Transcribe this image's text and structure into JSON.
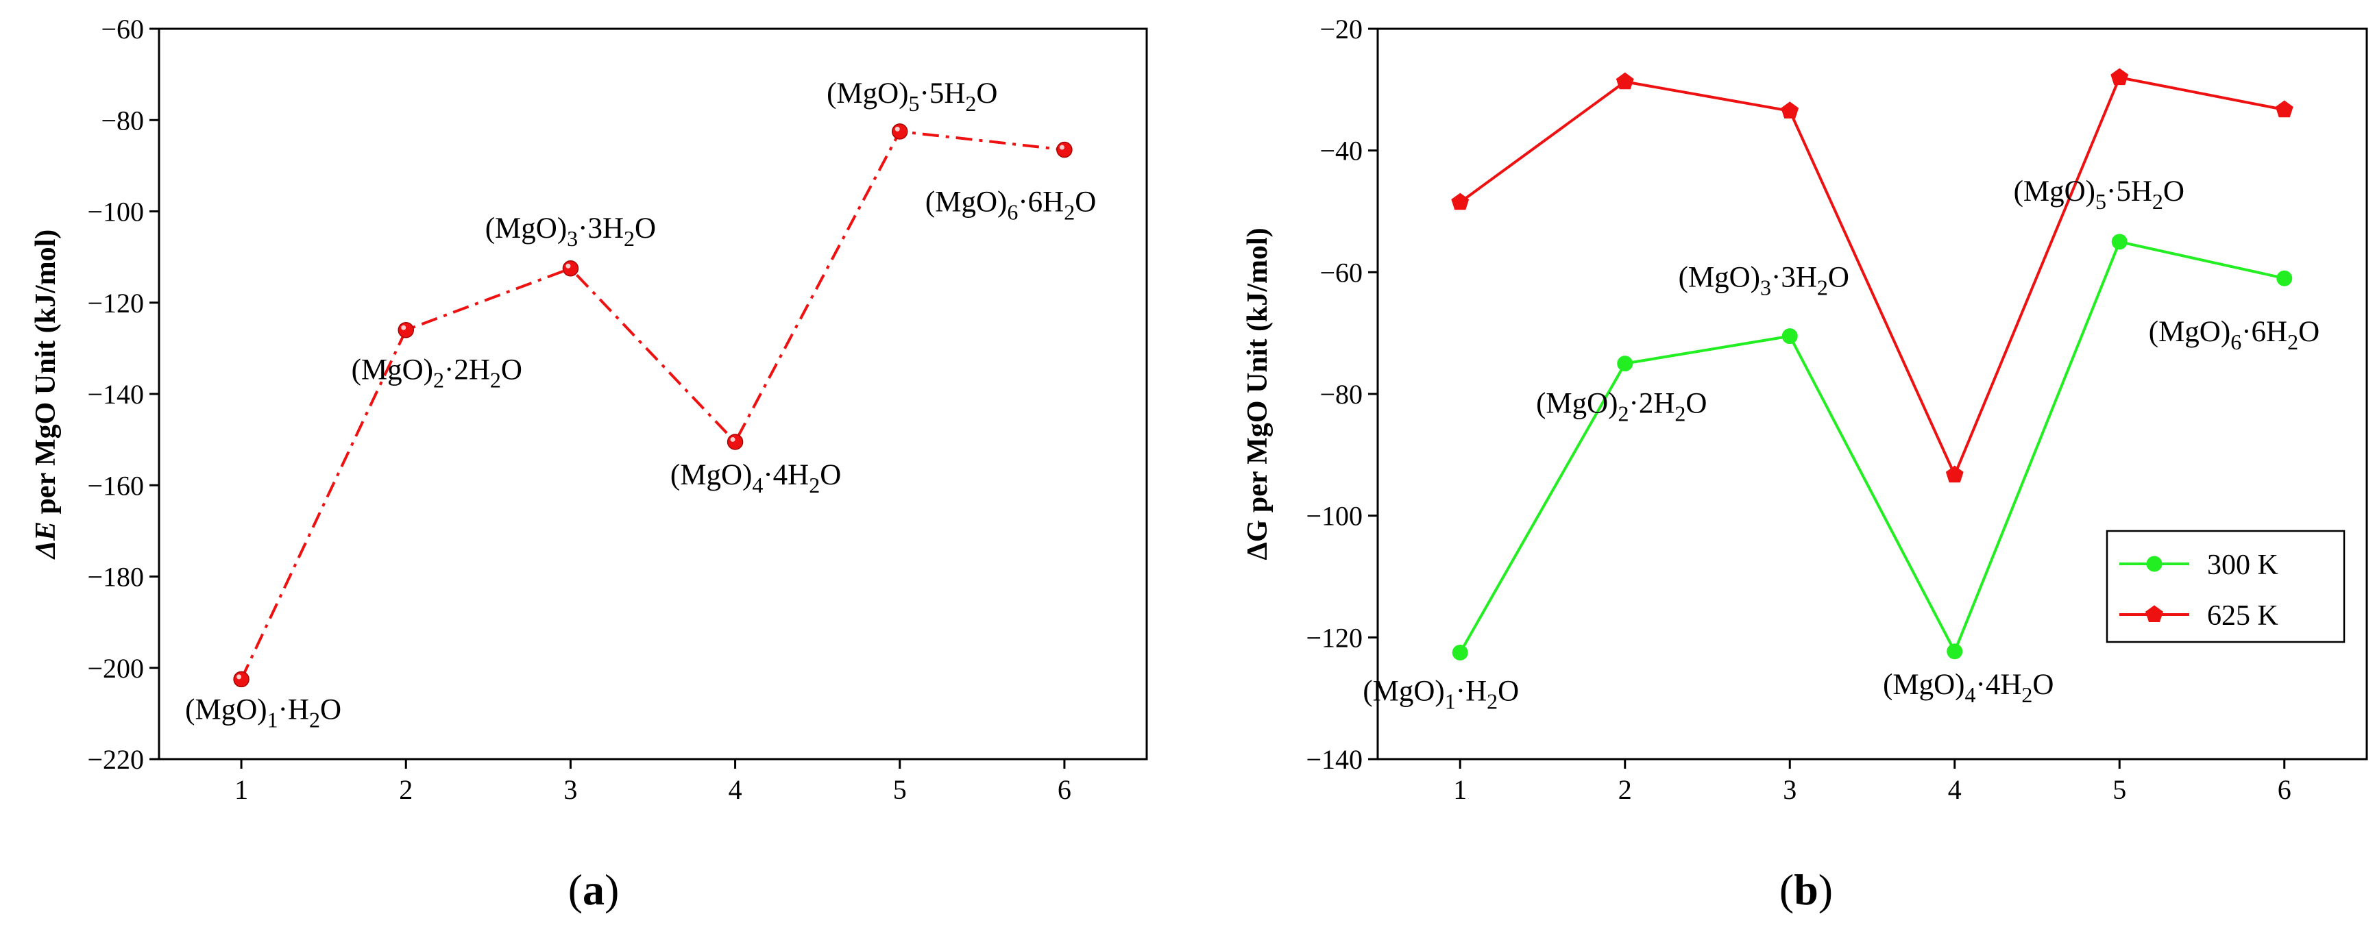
{
  "chart_data": [
    {
      "panel": "a",
      "panel_label": "(a)",
      "type": "line",
      "x": [
        1,
        2,
        3,
        4,
        5,
        6
      ],
      "xlim": [
        0.5,
        6.5
      ],
      "ylim": [
        -220,
        -60
      ],
      "yticks": [
        -220,
        -200,
        -180,
        -160,
        -140,
        -120,
        -100,
        -80,
        -60
      ],
      "xticks": [
        1,
        2,
        3,
        4,
        5,
        6
      ],
      "ylabel_prefix": "ΔE",
      "ylabel_rest": " per MgO Unit (kJ/mol)",
      "xlabel": "",
      "series": [
        {
          "name": "ΔE",
          "color": "#ee1111",
          "line_style": "dash-dot",
          "marker": "sphere",
          "values": [
            -202.5,
            -126,
            -112.5,
            -150.5,
            -82.5,
            -86.5
          ]
        }
      ],
      "annotations": [
        {
          "x": 1,
          "main": "(MgO)",
          "sub": "1",
          "mid": "·H",
          "sub2": "2",
          "end": "O"
        },
        {
          "x": 2,
          "main": "(MgO)",
          "sub": "2",
          "mid": "·2H",
          "sub2": "2",
          "end": "O"
        },
        {
          "x": 3,
          "main": "(MgO)",
          "sub": "3",
          "mid": "·3H",
          "sub2": "2",
          "end": "O"
        },
        {
          "x": 4,
          "main": "(MgO)",
          "sub": "4",
          "mid": "·4H",
          "sub2": "2",
          "end": "O"
        },
        {
          "x": 5,
          "main": "(MgO)",
          "sub": "5",
          "mid": "·5H",
          "sub2": "2",
          "end": "O"
        },
        {
          "x": 6,
          "main": "(MgO)",
          "sub": "6",
          "mid": "·6H",
          "sub2": "2",
          "end": "O"
        }
      ]
    },
    {
      "panel": "b",
      "panel_label": "(b)",
      "type": "line",
      "x": [
        1,
        2,
        3,
        4,
        5,
        6
      ],
      "xlim": [
        0.5,
        6.5
      ],
      "ylim": [
        -140,
        -20
      ],
      "yticks": [
        -140,
        -120,
        -100,
        -80,
        -60,
        -40,
        -20
      ],
      "xticks": [
        1,
        2,
        3,
        4,
        5,
        6
      ],
      "ylabel": "ΔG per MgO Unit (kJ/mol)",
      "xlabel": "",
      "legend_position": "center-right",
      "series": [
        {
          "name": "300 K",
          "color": "#22ee22",
          "line_style": "solid",
          "marker": "circle",
          "values": [
            -122.5,
            -75,
            -70.5,
            -122.3,
            -55,
            -61
          ]
        },
        {
          "name": "625 K",
          "color": "#ee1111",
          "line_style": "solid",
          "marker": "pentagon",
          "values": [
            -48.5,
            -28.7,
            -33.5,
            -93.3,
            -28,
            -33.3
          ]
        }
      ],
      "annotations": [
        {
          "x": 1,
          "main": "(MgO)",
          "sub": "1",
          "mid": "·H",
          "sub2": "2",
          "end": "O"
        },
        {
          "x": 2,
          "main": "(MgO)",
          "sub": "2",
          "mid": "·2H",
          "sub2": "2",
          "end": "O"
        },
        {
          "x": 3,
          "main": "(MgO)",
          "sub": "3",
          "mid": "·3H",
          "sub2": "2",
          "end": "O"
        },
        {
          "x": 4,
          "main": "(MgO)",
          "sub": "4",
          "mid": "·4H",
          "sub2": "2",
          "end": "O"
        },
        {
          "x": 5,
          "main": "(MgO)",
          "sub": "5",
          "mid": "·5H",
          "sub2": "2",
          "end": "O"
        },
        {
          "x": 6,
          "main": "(MgO)",
          "sub": "6",
          "mid": "·6H",
          "sub2": "2",
          "end": "O"
        }
      ]
    }
  ]
}
